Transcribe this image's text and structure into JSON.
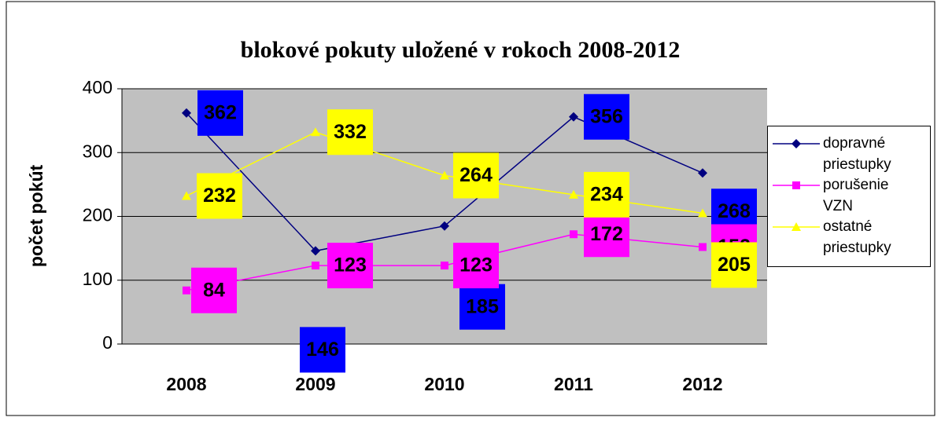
{
  "chart_data": {
    "type": "line",
    "title": "blokové pokuty uložené v rokoch 2008-2012",
    "y_label": "počet pokút",
    "categories": [
      "2008",
      "2009",
      "2010",
      "2011",
      "2012"
    ],
    "series": [
      {
        "name": "dopravné priestupky",
        "color": "#000080",
        "label_color": "#0000ff",
        "marker": "diamond",
        "values": [
          362,
          146,
          185,
          356,
          268
        ]
      },
      {
        "name": "porušenie VZN",
        "color": "#ff00ff",
        "label_color": "#ff00ff",
        "marker": "square",
        "values": [
          84,
          123,
          123,
          172,
          152
        ]
      },
      {
        "name": "ostatné priestupky",
        "color": "#ffff00",
        "label_color": "#ffff00",
        "marker": "triangle",
        "values": [
          232,
          332,
          264,
          234,
          205
        ]
      }
    ],
    "ylim": [
      0,
      400
    ],
    "yticks": [
      0,
      100,
      200,
      300,
      400
    ],
    "grid": true,
    "legend": "right"
  }
}
